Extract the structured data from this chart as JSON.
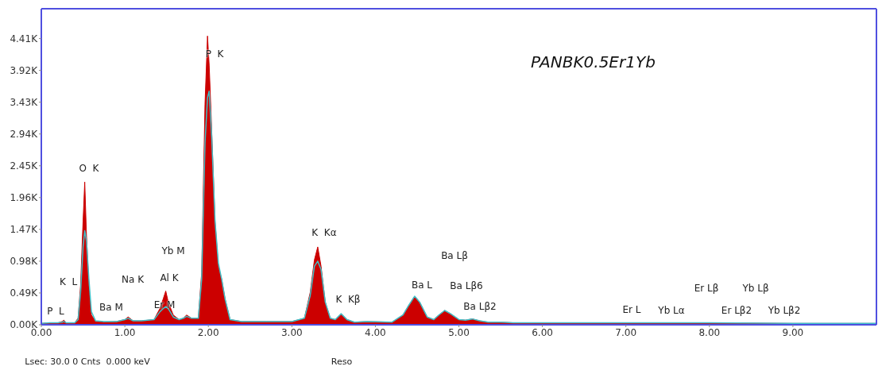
{
  "chart_data": {
    "type": "area",
    "title": "PANBK0.5Er1Yb",
    "x": [
      0,
      0.1,
      0.2,
      0.25,
      0.27,
      0.3,
      0.4,
      0.44,
      0.47,
      0.5,
      0.52,
      0.54,
      0.57,
      0.6,
      0.65,
      0.75,
      0.9,
      1.0,
      1.04,
      1.1,
      1.2,
      1.35,
      1.42,
      1.46,
      1.49,
      1.52,
      1.58,
      1.65,
      1.7,
      1.74,
      1.8,
      1.88,
      1.92,
      1.96,
      1.99,
      2.01,
      2.04,
      2.08,
      2.12,
      2.16,
      2.2,
      2.26,
      2.4,
      2.7,
      3.0,
      3.15,
      3.22,
      3.27,
      3.31,
      3.35,
      3.4,
      3.46,
      3.52,
      3.59,
      3.66,
      3.75,
      3.9,
      4.2,
      4.33,
      4.4,
      4.47,
      4.53,
      4.62,
      4.7,
      4.76,
      4.83,
      4.9,
      5.0,
      5.08,
      5.16,
      5.25,
      5.35,
      5.5,
      5.65,
      6.0,
      6.5,
      7.0,
      7.5,
      8.0,
      9.0,
      10.0
    ],
    "series": [
      {
        "color": "#cc0000",
        "values": [
          0.02,
          0.03,
          0.03,
          0.05,
          0.07,
          0.03,
          0.03,
          0.1,
          0.6,
          1.6,
          2.2,
          1.4,
          0.6,
          0.15,
          0.05,
          0.04,
          0.05,
          0.08,
          0.12,
          0.06,
          0.06,
          0.08,
          0.25,
          0.4,
          0.52,
          0.35,
          0.15,
          0.08,
          0.1,
          0.15,
          0.1,
          0.1,
          0.8,
          3.4,
          4.45,
          4.0,
          3.0,
          1.6,
          0.9,
          0.7,
          0.4,
          0.08,
          0.05,
          0.05,
          0.05,
          0.1,
          0.5,
          1.0,
          1.2,
          0.9,
          0.35,
          0.1,
          0.08,
          0.17,
          0.08,
          0.04,
          0.05,
          0.04,
          0.15,
          0.3,
          0.44,
          0.35,
          0.12,
          0.08,
          0.15,
          0.22,
          0.17,
          0.08,
          0.07,
          0.09,
          0.06,
          0.04,
          0.04,
          0.03,
          0.03,
          0.03,
          0.03,
          0.03,
          0.03,
          0.02,
          0.02
        ]
      },
      {
        "type": "line",
        "color": "#40c0c8",
        "values": [
          0.02,
          0.03,
          0.03,
          0.04,
          0.05,
          0.03,
          0.03,
          0.08,
          0.5,
          1.2,
          1.45,
          1.3,
          0.7,
          0.2,
          0.06,
          0.05,
          0.05,
          0.08,
          0.1,
          0.06,
          0.06,
          0.08,
          0.2,
          0.25,
          0.28,
          0.25,
          0.12,
          0.08,
          0.1,
          0.13,
          0.1,
          0.1,
          0.7,
          2.8,
          3.5,
          3.6,
          2.9,
          1.6,
          0.95,
          0.7,
          0.4,
          0.08,
          0.05,
          0.05,
          0.05,
          0.1,
          0.45,
          0.9,
          0.98,
          0.85,
          0.35,
          0.1,
          0.08,
          0.17,
          0.08,
          0.04,
          0.05,
          0.04,
          0.15,
          0.3,
          0.44,
          0.35,
          0.12,
          0.08,
          0.15,
          0.22,
          0.17,
          0.08,
          0.07,
          0.09,
          0.06,
          0.04,
          0.04,
          0.03,
          0.03,
          0.03,
          0.03,
          0.03,
          0.03,
          0.02,
          0.02
        ]
      }
    ],
    "xlim": [
      0,
      10
    ],
    "xticks": [
      {
        "value": 0,
        "label": "0.00"
      },
      {
        "value": 1,
        "label": "1.00"
      },
      {
        "value": 2,
        "label": "2.00"
      },
      {
        "value": 3,
        "label": "3.00"
      },
      {
        "value": 4,
        "label": "4.00"
      },
      {
        "value": 5,
        "label": "5.00"
      },
      {
        "value": 6,
        "label": "6.00"
      },
      {
        "value": 7,
        "label": "7.00"
      },
      {
        "value": 8,
        "label": "8.00"
      },
      {
        "value": 9,
        "label": "9.00"
      }
    ],
    "ylim": [
      0,
      4.87
    ],
    "yticks": [
      {
        "value": 0,
        "label": "0.00K"
      },
      {
        "value": 0.49,
        "label": "0.49K"
      },
      {
        "value": 0.98,
        "label": "0.98K"
      },
      {
        "value": 1.47,
        "label": "1.47K"
      },
      {
        "value": 1.96,
        "label": "1.96K"
      },
      {
        "value": 2.45,
        "label": "2.45K"
      },
      {
        "value": 2.94,
        "label": "2.94K"
      },
      {
        "value": 3.43,
        "label": "3.43K"
      },
      {
        "value": 3.92,
        "label": "3.92K"
      },
      {
        "value": 4.41,
        "label": "4.41K"
      }
    ],
    "annotations": [
      "P  L",
      "K  L",
      "O  K",
      "Ba M",
      "Na K",
      "Yb M",
      "Al K",
      "Er M",
      "P  K",
      "K  Kα",
      "K  Kβ",
      "Ba L",
      "Ba Lβ",
      "Ba Lβ6",
      "Ba Lβ2",
      "Er L",
      "Yb Lα",
      "Er Lβ",
      "Er Lβ2",
      "Yb Lβ",
      "Yb Lβ2",
      "Lsec: 30.0 0 Cnts  0.000 keV",
      "Reso"
    ]
  }
}
